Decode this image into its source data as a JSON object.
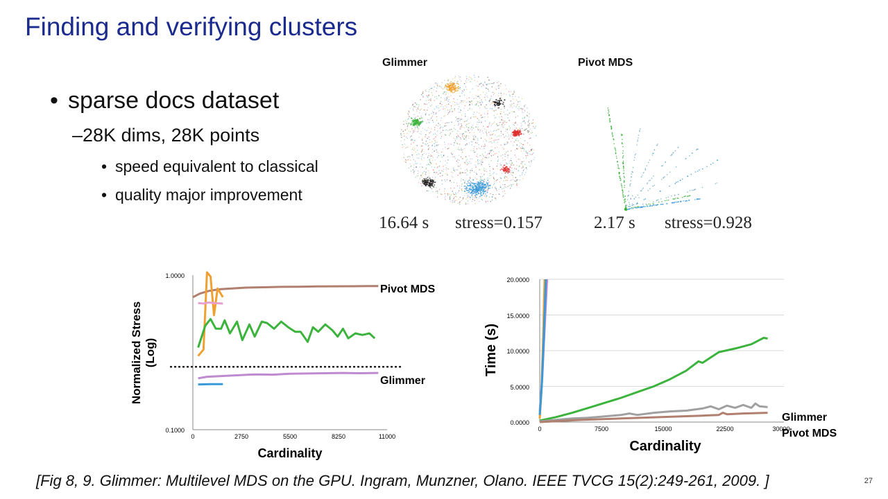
{
  "slide": {
    "title": "Finding and verifying clusters",
    "bullet": "sparse docs dataset",
    "sub_bullet": "28K dims, 28K points",
    "sub_sub_bullets": [
      "speed equivalent to classical",
      "quality major improvement"
    ],
    "citation": "[Fig 8, 9. Glimmer: Multilevel MDS on the GPU. Ingram, Munzner, Olano.  IEEE TVCG 15(2):249-261, 2009. ]",
    "page_number": "27"
  },
  "scatter_panels": [
    {
      "label": "Glimmer",
      "time": "16.64 s",
      "stress": "stress=0.157"
    },
    {
      "label": "Pivot MDS",
      "time": "2.17 s",
      "stress": "stress=0.928"
    }
  ],
  "colors": {
    "title": "#1a2a8e",
    "orange": "#f0a030",
    "brown": "#b07f6e",
    "pink": "#e8a0d0",
    "green": "#3cb33c",
    "purple": "#c08ad0",
    "blue": "#3a9ad8",
    "gray": "#a0a0a0",
    "red": "#e03030",
    "black": "#202020"
  },
  "chart_data": [
    {
      "type": "line",
      "xlabel": "Cardinality",
      "ylabel": "Normalized Stress (Log)",
      "ylabel_lines": [
        "Normalized Stress",
        "(Log)"
      ],
      "x_ticks": [
        "0",
        "2750",
        "5500",
        "8250",
        "11000"
      ],
      "y_ticks": [
        "1.0000",
        "0.1000"
      ],
      "xlim": [
        0,
        11000
      ],
      "ylim": [
        0.1,
        1.0
      ],
      "log_scale_y": true,
      "annotations": [
        "Pivot MDS",
        "Glimmer"
      ],
      "reference_line_y": 0.255,
      "series": [
        {
          "color": "#b07f6e",
          "x": [
            0,
            400,
            900,
            1500,
            2200,
            3000,
            4000,
            5000,
            6000,
            7000,
            8000,
            9000,
            10000,
            10500
          ],
          "y": [
            0.72,
            0.76,
            0.79,
            0.81,
            0.82,
            0.83,
            0.835,
            0.84,
            0.842,
            0.845,
            0.847,
            0.848,
            0.85,
            0.85
          ]
        },
        {
          "color": "#f0a030",
          "x": [
            300,
            600,
            800,
            1000,
            1200,
            1400,
            1700
          ],
          "y": [
            0.3,
            0.33,
            1.05,
            0.98,
            0.55,
            0.82,
            0.72
          ]
        },
        {
          "color": "#e8a0d0",
          "x": [
            300,
            600,
            900,
            1200,
            1700
          ],
          "y": [
            0.66,
            0.655,
            0.665,
            0.66,
            0.655
          ]
        },
        {
          "color": "#3cb33c",
          "x": [
            300,
            700,
            1000,
            1300,
            1600,
            1800,
            2100,
            2500,
            2800,
            3200,
            3500,
            3900,
            4200,
            4600,
            5000,
            5400,
            5800,
            6100,
            6500,
            6800,
            7100,
            7500,
            7900,
            8200,
            8500,
            8800,
            9200,
            9600,
            10000,
            10300
          ],
          "y": [
            0.34,
            0.47,
            0.52,
            0.45,
            0.45,
            0.51,
            0.42,
            0.5,
            0.38,
            0.48,
            0.4,
            0.5,
            0.49,
            0.45,
            0.5,
            0.46,
            0.43,
            0.43,
            0.37,
            0.46,
            0.43,
            0.48,
            0.44,
            0.4,
            0.45,
            0.39,
            0.42,
            0.41,
            0.42,
            0.39
          ]
        },
        {
          "color": "#c08ad0",
          "x": [
            300,
            800,
            1500,
            2500,
            3500,
            4500,
            5500,
            6500,
            7500,
            8500,
            9500,
            10500
          ],
          "y": [
            0.215,
            0.22,
            0.222,
            0.225,
            0.228,
            0.227,
            0.23,
            0.231,
            0.232,
            0.233,
            0.232,
            0.233
          ]
        },
        {
          "color": "#3a9ad8",
          "x": [
            300,
            1000,
            1700
          ],
          "y": [
            0.196,
            0.197,
            0.197
          ]
        }
      ]
    },
    {
      "type": "line",
      "xlabel": "Cardinality",
      "ylabel": "Time (s)",
      "x_ticks": [
        "0",
        "7500",
        "15000",
        "22500",
        "30000"
      ],
      "y_ticks": [
        "0.0000",
        "5.0000",
        "10.0000",
        "15.0000",
        "20.0000"
      ],
      "xlim": [
        0,
        30000
      ],
      "ylim": [
        0,
        20
      ],
      "annotations": [
        "Glimmer",
        "Pivot MDS"
      ],
      "series": [
        {
          "color": "#f0a030",
          "x": [
            0,
            200,
            400,
            600
          ],
          "y": [
            0.5,
            4,
            11,
            20
          ]
        },
        {
          "color": "#c08ad0",
          "x": [
            0,
            300,
            600,
            900
          ],
          "y": [
            1.5,
            6,
            13,
            20
          ]
        },
        {
          "color": "#3a9ad8",
          "x": [
            0,
            250,
            500,
            750
          ],
          "y": [
            1.0,
            5,
            12,
            20
          ]
        },
        {
          "color": "#3cb33c",
          "x": [
            0,
            2000,
            4000,
            6000,
            8000,
            10000,
            12000,
            14000,
            16000,
            18000,
            19500,
            20000,
            22000,
            24000,
            26000,
            27500,
            28000
          ],
          "y": [
            0.2,
            0.7,
            1.3,
            2.0,
            2.7,
            3.4,
            4.2,
            5.0,
            6.0,
            7.2,
            8.5,
            8.3,
            9.8,
            10.3,
            10.9,
            11.8,
            11.7
          ]
        },
        {
          "color": "#a0a0a0",
          "x": [
            0,
            2000,
            4000,
            6000,
            8000,
            10000,
            11000,
            12000,
            14000,
            16000,
            18000,
            20000,
            21000,
            22000,
            23000,
            24000,
            25000,
            26000,
            26500,
            27000,
            28000
          ],
          "y": [
            0.1,
            0.3,
            0.5,
            0.6,
            0.8,
            1.0,
            1.2,
            1.0,
            1.3,
            1.5,
            1.6,
            1.9,
            2.2,
            1.8,
            2.3,
            2.0,
            2.4,
            2.0,
            2.6,
            2.2,
            2.1
          ]
        },
        {
          "color": "#b07f6e",
          "x": [
            0,
            5000,
            10000,
            15000,
            20000,
            22000,
            22500,
            23000,
            25000,
            28000
          ],
          "y": [
            0.0,
            0.3,
            0.5,
            0.7,
            0.9,
            1.0,
            1.3,
            1.1,
            1.2,
            1.3
          ]
        }
      ]
    }
  ]
}
